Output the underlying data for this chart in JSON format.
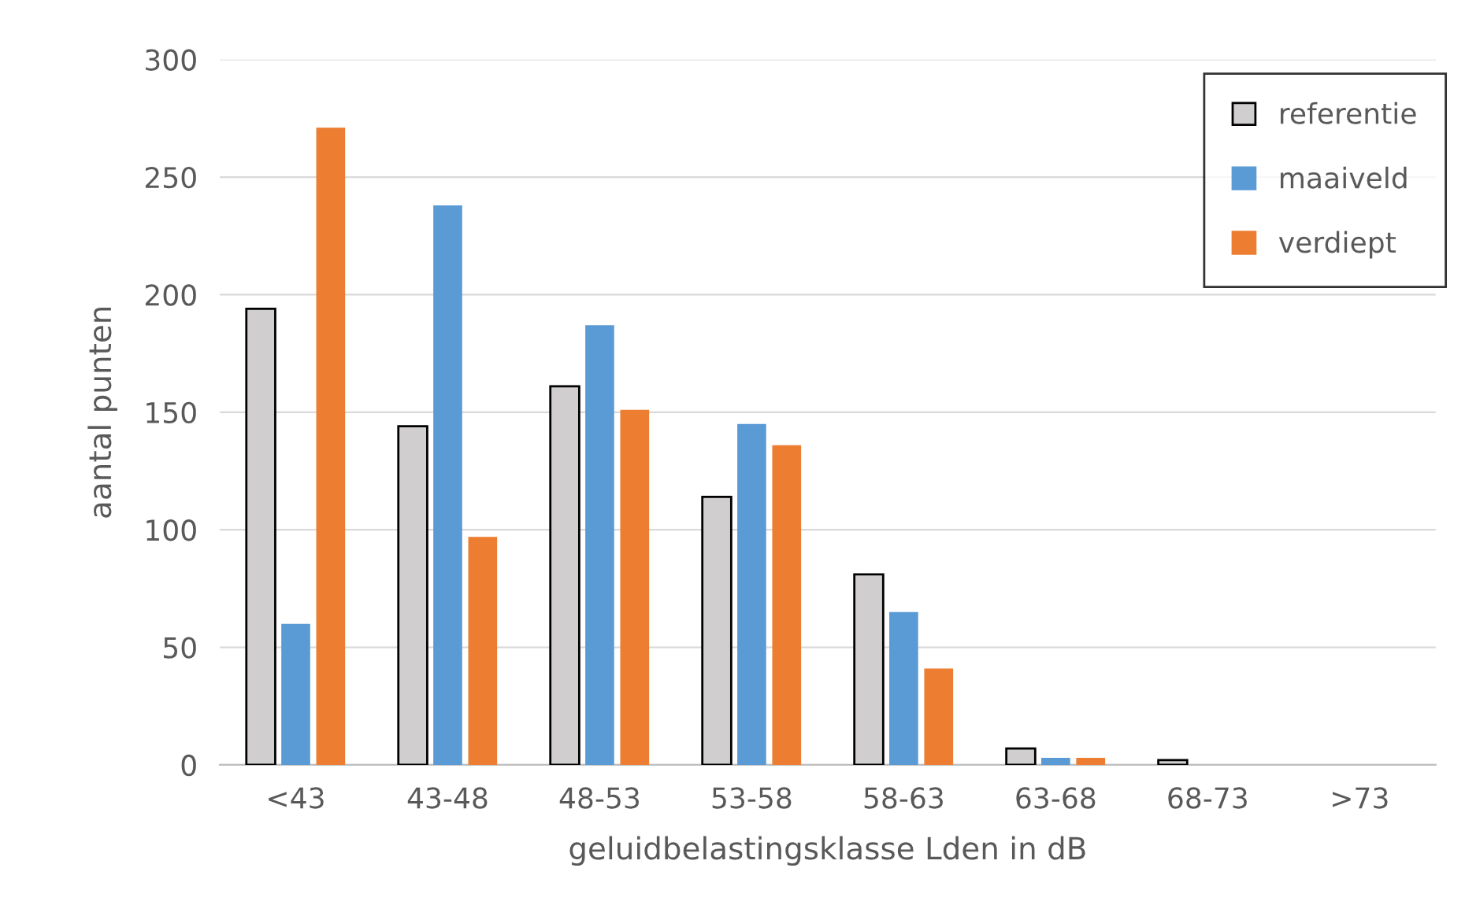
{
  "chart_data": {
    "type": "bar",
    "xlabel": "geluidbelastingsklasse Lden in dB",
    "ylabel": "aantal punten",
    "categories": [
      "<43",
      "43-48",
      "48-53",
      "53-58",
      "58-63",
      "63-68",
      "68-73",
      ">73"
    ],
    "series": [
      {
        "name": "referentie",
        "color": "#d0cece",
        "values": [
          194,
          144,
          161,
          114,
          81,
          7,
          2,
          0
        ]
      },
      {
        "name": "maaiveld",
        "color": "#5b9bd5",
        "values": [
          60,
          238,
          187,
          145,
          65,
          3,
          0,
          0
        ]
      },
      {
        "name": "verdiept",
        "color": "#ed7d31",
        "values": [
          271,
          97,
          151,
          136,
          41,
          3,
          0,
          0
        ]
      }
    ],
    "ylim": [
      0,
      300
    ],
    "yticks": [
      0,
      50,
      100,
      150,
      200,
      250,
      300
    ],
    "grid": "y",
    "legend": "top right"
  }
}
